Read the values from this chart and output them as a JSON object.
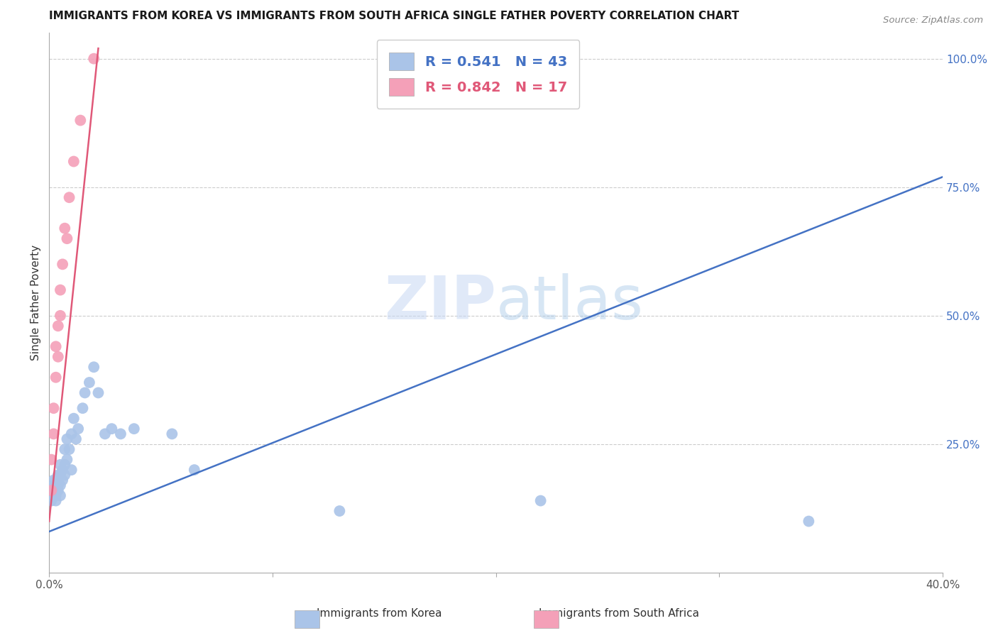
{
  "title": "IMMIGRANTS FROM KOREA VS IMMIGRANTS FROM SOUTH AFRICA SINGLE FATHER POVERTY CORRELATION CHART",
  "source": "Source: ZipAtlas.com",
  "ylabel": "Single Father Poverty",
  "xlim": [
    0,
    0.4
  ],
  "ylim": [
    0,
    1.05
  ],
  "korea_R": 0.541,
  "korea_N": 43,
  "sa_R": 0.842,
  "sa_N": 17,
  "korea_color": "#aac4e8",
  "korea_line_color": "#4472c4",
  "sa_color": "#f4a0b8",
  "sa_line_color": "#e05878",
  "watermark_zip": "ZIP",
  "watermark_atlas": "atlas",
  "watermark_color": "#c8d8f0",
  "background_color": "#ffffff",
  "korea_x": [
    0.001,
    0.001,
    0.002,
    0.002,
    0.002,
    0.003,
    0.003,
    0.003,
    0.003,
    0.004,
    0.004,
    0.004,
    0.005,
    0.005,
    0.005,
    0.005,
    0.006,
    0.006,
    0.007,
    0.007,
    0.007,
    0.008,
    0.008,
    0.009,
    0.01,
    0.01,
    0.011,
    0.012,
    0.013,
    0.015,
    0.016,
    0.018,
    0.02,
    0.022,
    0.025,
    0.028,
    0.032,
    0.038,
    0.055,
    0.065,
    0.13,
    0.22,
    0.34
  ],
  "korea_y": [
    0.14,
    0.16,
    0.16,
    0.17,
    0.18,
    0.14,
    0.15,
    0.16,
    0.18,
    0.16,
    0.17,
    0.19,
    0.15,
    0.17,
    0.19,
    0.21,
    0.18,
    0.2,
    0.19,
    0.21,
    0.24,
    0.22,
    0.26,
    0.24,
    0.2,
    0.27,
    0.3,
    0.26,
    0.28,
    0.32,
    0.35,
    0.37,
    0.4,
    0.35,
    0.27,
    0.28,
    0.27,
    0.28,
    0.27,
    0.2,
    0.12,
    0.14,
    0.1
  ],
  "korea_line_x0": 0.0,
  "korea_line_x1": 0.4,
  "korea_line_y0": 0.08,
  "korea_line_y1": 0.77,
  "sa_x": [
    0.001,
    0.001,
    0.002,
    0.002,
    0.003,
    0.003,
    0.004,
    0.004,
    0.005,
    0.005,
    0.006,
    0.007,
    0.008,
    0.009,
    0.011,
    0.014,
    0.02
  ],
  "sa_y": [
    0.16,
    0.22,
    0.27,
    0.32,
    0.38,
    0.44,
    0.42,
    0.48,
    0.5,
    0.55,
    0.6,
    0.67,
    0.65,
    0.73,
    0.8,
    0.88,
    1.0
  ],
  "sa_line_x0": 0.0,
  "sa_line_x1": 0.022,
  "sa_line_y0": 0.1,
  "sa_line_y1": 1.02
}
